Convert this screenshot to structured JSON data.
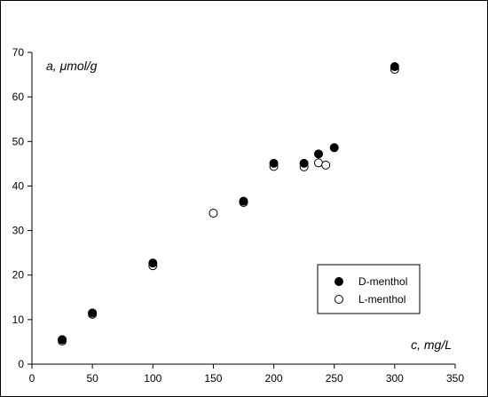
{
  "chart_data": {
    "type": "scatter",
    "title": "",
    "xlabel": "c, mg/L",
    "ylabel": "a, μmol/g",
    "xlim": [
      0,
      350
    ],
    "ylim": [
      0,
      70
    ],
    "xticks": [
      0,
      50,
      100,
      150,
      200,
      250,
      300,
      350
    ],
    "yticks": [
      0,
      10,
      20,
      30,
      40,
      50,
      60,
      70
    ],
    "grid": false,
    "legend": {
      "position": "bottom-right",
      "frame": true
    },
    "series": [
      {
        "name": "D-menthol",
        "marker": "filled-circle",
        "color": "#000000",
        "x": [
          25,
          50,
          100,
          175,
          200,
          225,
          237,
          250,
          300
        ],
        "y": [
          5.5,
          11.5,
          22.7,
          36.6,
          45.1,
          45.1,
          47.2,
          48.6,
          66.8
        ]
      },
      {
        "name": "L-menthol",
        "marker": "open-circle",
        "color": "#000000",
        "x": [
          25,
          50,
          100,
          150,
          175,
          200,
          225,
          237,
          243,
          300
        ],
        "y": [
          5.2,
          11.2,
          22.1,
          33.9,
          36.3,
          44.4,
          44.3,
          45.2,
          44.7,
          66.2
        ]
      }
    ]
  }
}
